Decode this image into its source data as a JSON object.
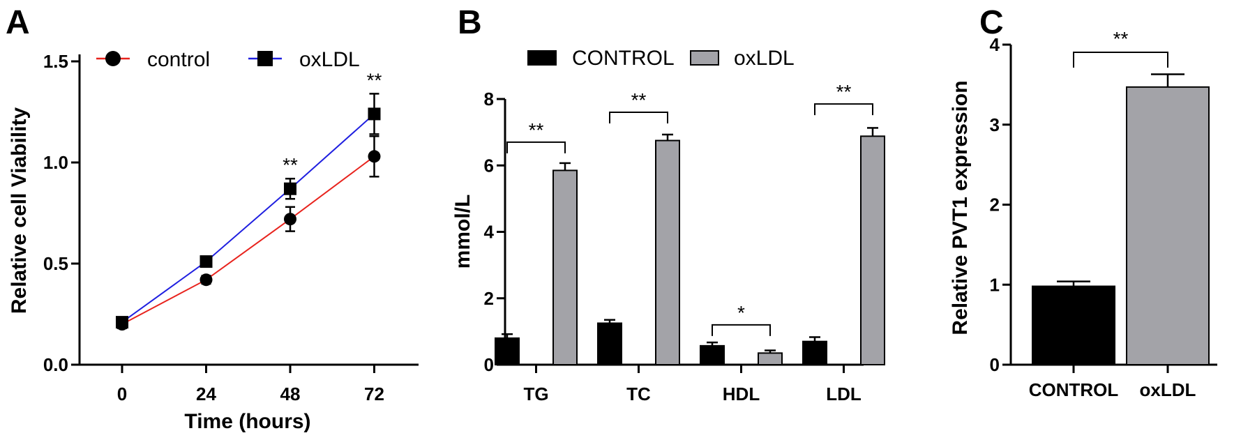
{
  "panels": {
    "a": "A",
    "b": "B",
    "c": "C"
  },
  "chart_data": [
    {
      "type": "line",
      "xlabel": "Time (hours)",
      "ylabel": "Relative cell Viability",
      "x": [
        0,
        24,
        48,
        72
      ],
      "ylim": [
        0,
        1.5
      ],
      "yticks": [
        "0.0",
        "0.5",
        "1.0",
        "1.5"
      ],
      "legend_position": "top",
      "series": [
        {
          "name": "control",
          "color": "#e8231d",
          "marker": "circle",
          "values": [
            0.2,
            0.42,
            0.72,
            1.03
          ],
          "errors": [
            0.02,
            0.02,
            0.06,
            0.1
          ]
        },
        {
          "name": "oxLDL",
          "color": "#1f1fe0",
          "marker": "square",
          "values": [
            0.21,
            0.51,
            0.87,
            1.24
          ],
          "errors": [
            0.02,
            0.02,
            0.05,
            0.1
          ]
        }
      ],
      "significance": [
        {
          "x": 48,
          "text": "**"
        },
        {
          "x": 72,
          "text": "**"
        }
      ]
    },
    {
      "type": "bar",
      "ylabel": "mmol/L",
      "categories": [
        "TG",
        "TC",
        "HDL",
        "LDL"
      ],
      "ylim": [
        0,
        8
      ],
      "yticks": [
        "0",
        "2",
        "4",
        "6",
        "8"
      ],
      "legend_position": "top",
      "series": [
        {
          "name": "CONTROL",
          "color": "#000000",
          "values": [
            0.8,
            1.25,
            0.57,
            0.7
          ],
          "errors": [
            0.12,
            0.1,
            0.1,
            0.13
          ]
        },
        {
          "name": "oxLDL",
          "color": "#a3a3a8",
          "values": [
            5.85,
            6.75,
            0.35,
            6.88
          ],
          "errors": [
            0.22,
            0.18,
            0.08,
            0.25
          ]
        }
      ],
      "significance": [
        {
          "category": "TG",
          "text": "**",
          "bracket_y": 6.7
        },
        {
          "category": "TC",
          "text": "**",
          "bracket_y": 7.6
        },
        {
          "category": "HDL",
          "text": "*",
          "bracket_y": 1.2
        },
        {
          "category": "LDL",
          "text": "**",
          "bracket_y": 7.85
        }
      ]
    },
    {
      "type": "bar",
      "ylabel": "Relative PVT1 expression",
      "categories": [
        "CONTROL",
        "oxLDL"
      ],
      "values": [
        0.98,
        3.47
      ],
      "errors": [
        0.06,
        0.16
      ],
      "colors": [
        "#000000",
        "#a3a3a8"
      ],
      "ylim": [
        0,
        4
      ],
      "yticks": [
        "0",
        "1",
        "2",
        "3",
        "4"
      ],
      "significance": [
        {
          "text": "**",
          "bracket_y": 3.93
        }
      ]
    }
  ]
}
